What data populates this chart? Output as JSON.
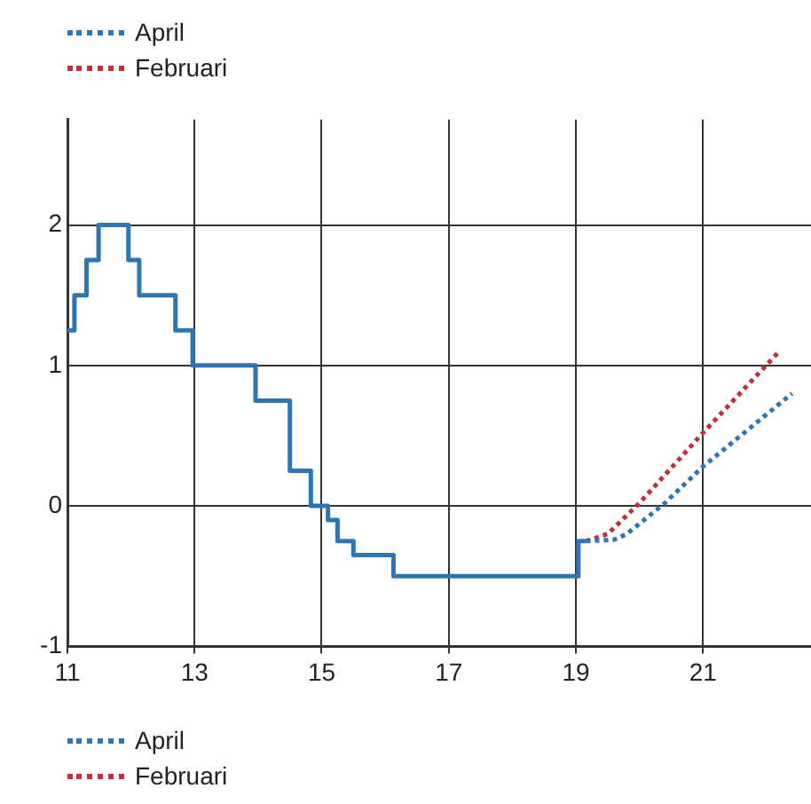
{
  "chart_data": {
    "type": "line",
    "xlim": [
      11,
      22.7
    ],
    "xticks": [
      11,
      13,
      15,
      17,
      19,
      21
    ],
    "ylim": [
      -1,
      2.75
    ],
    "yticks": [
      -1,
      0,
      1,
      2
    ],
    "grid": true,
    "legend": [
      "top left",
      "bottom left"
    ],
    "series": [
      {
        "type": "step",
        "color": "#2e75b6",
        "line_style": "solid",
        "x": [
          11,
          11.11,
          11.3,
          11.49,
          11.96,
          12.13,
          12.7,
          12.97,
          13.96,
          14.5,
          14.83,
          15.1,
          15.25,
          15.5,
          16.13,
          19.04,
          19.16
        ],
        "values": [
          1.25,
          1.5,
          1.75,
          2,
          1.75,
          1.5,
          1.25,
          1,
          0.75,
          0.25,
          0,
          -0.1,
          -0.25,
          -0.35,
          -0.5,
          -0.25,
          -0.25
        ]
      },
      {
        "name": "April",
        "color": "#2e75b6",
        "line_style": "dotted",
        "x": [
          19.16,
          19.6,
          19.8,
          20.4,
          21,
          22.4
        ],
        "values": [
          -0.25,
          -0.24,
          -0.2,
          0.02,
          0.28,
          0.8
        ]
      },
      {
        "name": "Februari",
        "color": "#c0303a",
        "line_style": "dotted",
        "x": [
          19.16,
          19.5,
          20,
          21,
          22.2
        ],
        "values": [
          -0.25,
          -0.2,
          0.02,
          0.52,
          1.1
        ]
      }
    ]
  }
}
